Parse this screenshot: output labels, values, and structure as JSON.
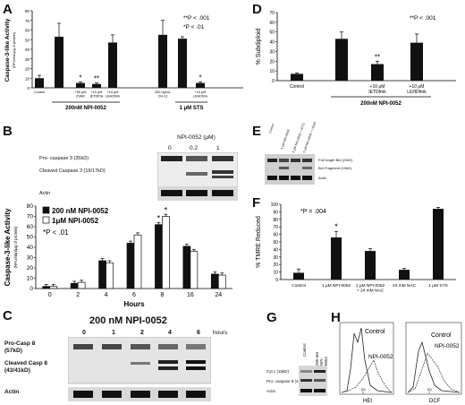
{
  "panel_labels": {
    "a": "A",
    "b": "B",
    "c": "C",
    "d": "D",
    "e": "E",
    "f": "F",
    "g": "G",
    "h": "H"
  },
  "chart_data": [
    {
      "id": "A",
      "type": "bar",
      "title": "",
      "ylabel": "Caspase-3-like Activity",
      "ylabel_sub": "(RFU/min/μg of protein)",
      "ylim": [
        0,
        80
      ],
      "yticks": [
        0,
        10,
        20,
        30,
        40,
        50,
        60,
        70,
        80
      ],
      "categories": [
        "Control",
        "",
        "+50 μM ZVAD",
        "+10 μM IETDfmk",
        "+10 μM LEHDfmk",
        "250 ng/mL CH-11",
        "",
        "+10 μM LEHDfmk"
      ],
      "values": [
        10,
        53,
        5,
        4,
        47,
        55,
        51,
        5
      ],
      "errors": [
        3,
        14,
        1,
        1,
        8,
        15,
        2,
        1
      ],
      "stars": [
        "",
        "",
        "*",
        "**",
        "",
        "",
        "",
        "*"
      ],
      "groups": [
        {
          "label": "200nM NPI-0052",
          "from": 1,
          "to": 4
        },
        {
          "label": "1 μM STS",
          "from": 6,
          "to": 7
        }
      ],
      "legend": [
        "**P < .001",
        "*P < .01"
      ]
    },
    {
      "id": "B",
      "type": "bar",
      "title": "",
      "xlabel": "Hours",
      "ylabel": "Caspase-3-like Activity",
      "ylabel_sub": "(RFU/min/μg of protein)",
      "ylim": [
        0,
        80
      ],
      "yticks": [
        0,
        10,
        20,
        30,
        40,
        50,
        60,
        70,
        80
      ],
      "categories": [
        "0",
        "2",
        "4",
        "6",
        "8",
        "16",
        "24"
      ],
      "series": [
        {
          "name": "200 nM NPI-0052",
          "values": [
            2,
            5,
            27,
            44,
            62,
            41,
            14
          ]
        },
        {
          "name": "1μM NPI-0052",
          "values": [
            2,
            6,
            25,
            52,
            70,
            36,
            13
          ]
        }
      ],
      "stars": [
        "",
        "",
        "",
        "",
        "*",
        "",
        ""
      ],
      "legend_note": "*P < .01"
    },
    {
      "id": "D",
      "type": "bar",
      "title": "",
      "ylabel": "% Subdiploid",
      "ylim": [
        0,
        70
      ],
      "yticks": [
        0,
        10,
        20,
        30,
        40,
        50,
        60,
        70
      ],
      "categories": [
        "Control",
        "",
        "+10 μM IETDfmk",
        "+10 μM LEHDfmk"
      ],
      "values": [
        7,
        43,
        17,
        39
      ],
      "errors": [
        1,
        7,
        3,
        9
      ],
      "stars": [
        "",
        "",
        "**",
        ""
      ],
      "groups": [
        {
          "label": "200nM NPI-0052",
          "from": 1,
          "to": 3
        }
      ],
      "legend": [
        "**P < .001"
      ]
    },
    {
      "id": "F",
      "type": "bar",
      "title": "",
      "ylabel": "% TMRE Reduced",
      "ylim": [
        0,
        100
      ],
      "yticks": [
        0,
        10,
        20,
        30,
        40,
        50,
        60,
        70,
        80,
        90,
        100
      ],
      "categories": [
        "Control",
        "1 μM NPI-0052",
        "1 μM NPI-0052 + 24 mM NAC",
        "24 mM NAC",
        "1 μM STS"
      ],
      "values": [
        9,
        56,
        38,
        13,
        94
      ],
      "errors": [
        5,
        8,
        3,
        2,
        2
      ],
      "stars": [
        "",
        "*",
        "",
        "",
        ""
      ],
      "legend": [
        "*P = .004"
      ]
    }
  ],
  "blot_b": {
    "title": "NPI-0052 (μM)",
    "lanes": [
      "0",
      "0.2",
      "1"
    ],
    "rows": [
      "Pro- caspase 3 (35kD)",
      "Cleaved Caspase 3 (19/17kD)",
      "Actin"
    ]
  },
  "blot_c": {
    "title": "200 nM NPI-0052",
    "lanes": [
      "0",
      "1",
      "2",
      "4",
      "6"
    ],
    "unit": "hours",
    "rows": [
      "Pro-Casp 8 (57kD)",
      "Cleaved Casp 8 (43/41kD)",
      "Actin"
    ]
  },
  "blot_e": {
    "lanes": [
      "Control",
      "1 μM NPI-0052",
      "1 μM NPI-0052 + IETD",
      "1 μM NPI-0052 + LEHD"
    ],
    "rows": [
      "Full length Bid (22kD)",
      "Bid Fragment (15kD)",
      "Actin"
    ]
  },
  "blot_g": {
    "lanes": [
      "Control",
      "200 nM NPI-0052"
    ],
    "rows": [
      "Cyt c (15kD)",
      "Pro- caspase 9 (47kD)",
      "Actin"
    ]
  },
  "flow_h": [
    {
      "xlabel": "HEt",
      "labels": [
        "Control",
        "NPI-0052"
      ],
      "gate": "R1"
    },
    {
      "xlabel": "DCF",
      "labels": [
        "Control",
        "NPI-0052"
      ],
      "gate": "R1"
    }
  ]
}
